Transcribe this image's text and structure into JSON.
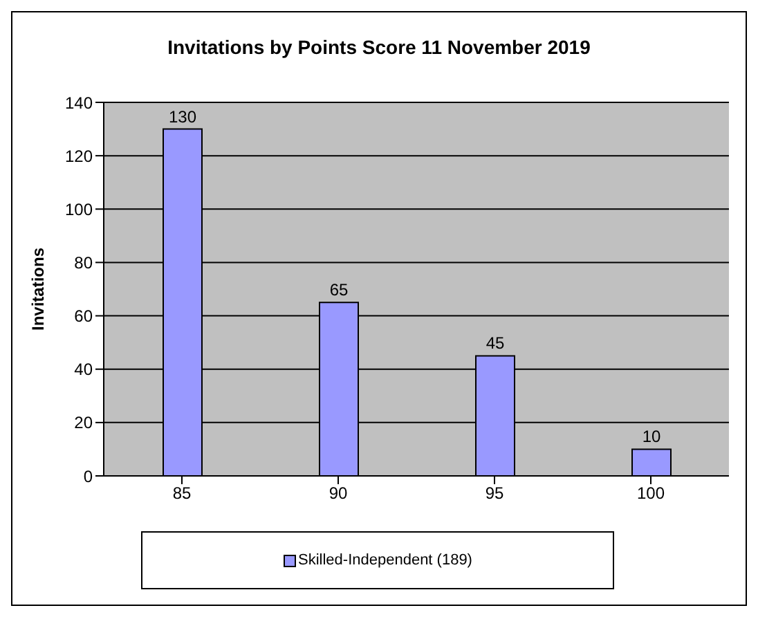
{
  "chart_data": {
    "type": "bar",
    "title": "Invitations by Points Score 11 November 2019",
    "ylabel": "Invitations",
    "categories": [
      "85",
      "90",
      "95",
      "100"
    ],
    "series": [
      {
        "name": "Skilled-Independent (189)",
        "color": "#9999ff",
        "values": [
          130,
          65,
          45,
          10
        ]
      }
    ],
    "ylim": [
      0,
      140
    ],
    "yticks": [
      0,
      20,
      40,
      60,
      80,
      100,
      120,
      140
    ],
    "grid": "y",
    "legend": "bottom",
    "data_labels": true
  }
}
